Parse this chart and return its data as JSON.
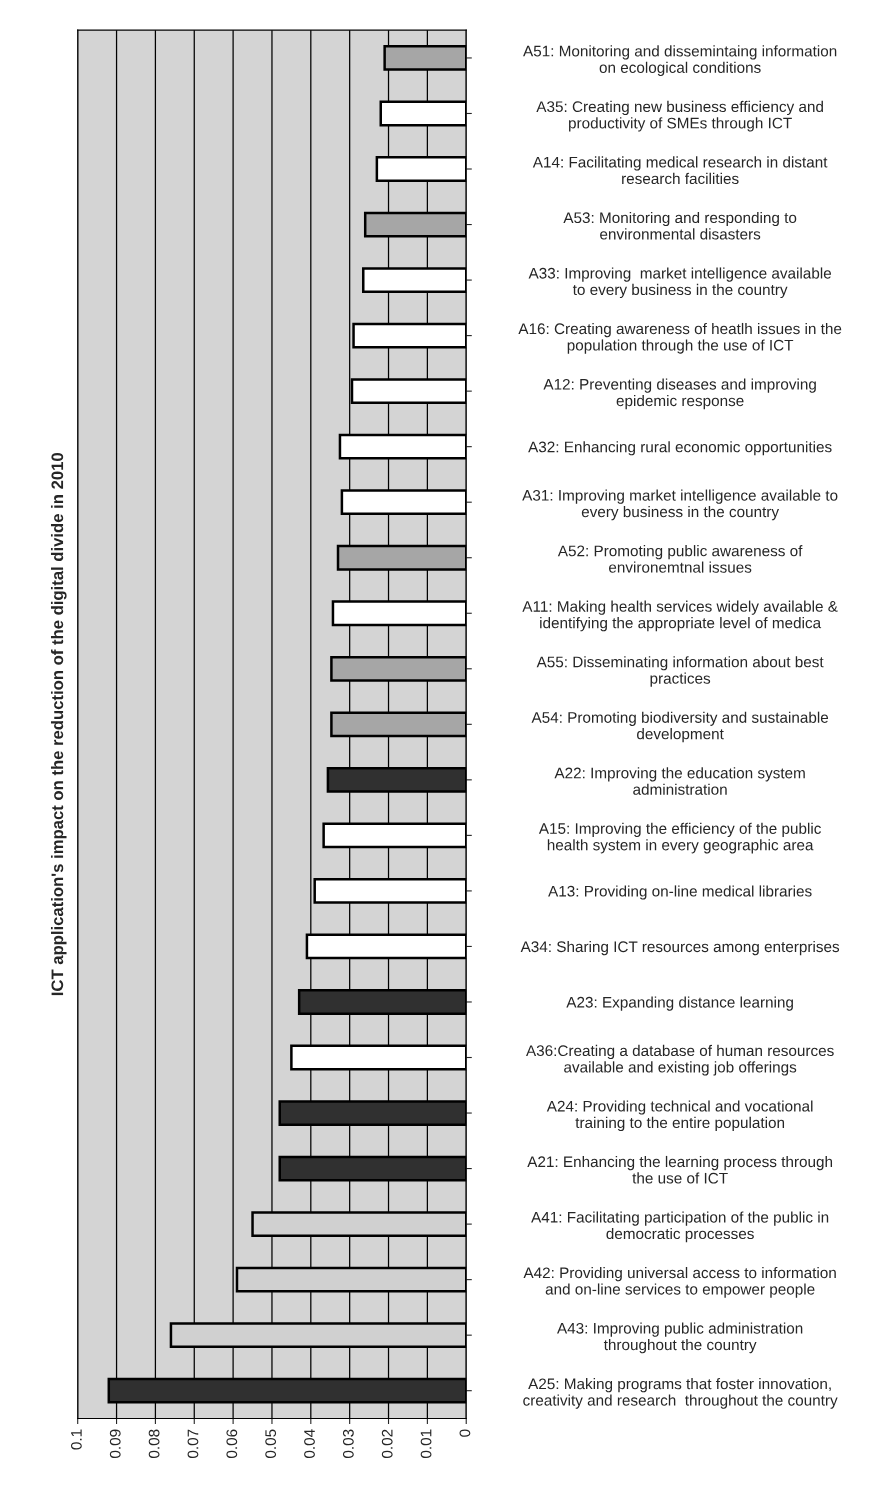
{
  "chart_data": {
    "type": "bar",
    "orientation": "horizontal",
    "ylabel": "ICT application's impact on the reduction of the digital divide in 2010",
    "categories": [
      "A51: Monitoring and dissemintaing information\non ecological conditions",
      "A35: Creating new business efficiency and\nproductivity of SMEs through ICT",
      "A14: Facilitating medical research in distant\nresearch facilities",
      "A53: Monitoring and responding to\nenvironmental disasters",
      "A33: Improving  market intelligence available\nto every business in the country",
      "A16: Creating awareness of heatlh issues in the\npopulation through the use of ICT",
      "A12: Preventing diseases and improving\nepidemic response",
      "A32: Enhancing rural economic opportunities",
      "A31: Improving market intelligence available to\nevery business in the country",
      "A52: Promoting public awareness of\nenvironemtnal issues",
      "A11: Making health services widely available &\nidentifying the appropriate level of medica",
      "A55: Disseminating information about best\npractices",
      "A54: Promoting biodiversity and sustainable\ndevelopment",
      "A22: Improving the education system\nadministration",
      "A15: Improving the efficiency of the public\nhealth system in every geographic area",
      "A13: Providing on-line medical libraries",
      "A34: Sharing ICT resources among enterprises",
      "A23: Expanding distance learning",
      "A36:Creating a database of human resources\navailable and existing job offerings",
      "A24: Providing technical and vocational\ntraining to the entire population",
      "A21: Enhancing the learning process through\nthe use of ICT",
      "A41: Facilitating participation of the public in\ndemocratic processes",
      "A42: Providing universal access to information\nand on-line services to empower people",
      "A43: Improving public administration\nthroughout the country",
      "A25: Making programs that foster innovation,\ncreativity and research  throughout the country"
    ],
    "values": [
      0.021,
      0.022,
      0.023,
      0.026,
      0.0265,
      0.029,
      0.0294,
      0.0325,
      0.032,
      0.033,
      0.0343,
      0.0347,
      0.0347,
      0.0356,
      0.0367,
      0.039,
      0.041,
      0.043,
      0.045,
      0.048,
      0.048,
      0.055,
      0.059,
      0.076,
      0.092
    ],
    "colors": [
      "#a6a6a6",
      "#ffffff",
      "#ffffff",
      "#a6a6a6",
      "#ffffff",
      "#ffffff",
      "#ffffff",
      "#ffffff",
      "#ffffff",
      "#a6a6a6",
      "#ffffff",
      "#a6a6a6",
      "#a6a6a6",
      "#303030",
      "#ffffff",
      "#ffffff",
      "#ffffff",
      "#303030",
      "#ffffff",
      "#303030",
      "#303030",
      "#d0d0d0",
      "#d0d0d0",
      "#d0d0d0",
      "#303030"
    ],
    "xlim": [
      0.1,
      0
    ],
    "xticks": [
      0.1,
      0.09,
      0.08,
      0.07,
      0.06,
      0.05,
      0.04,
      0.03,
      0.02,
      0.01,
      0
    ],
    "grid": "x",
    "legend": false
  }
}
